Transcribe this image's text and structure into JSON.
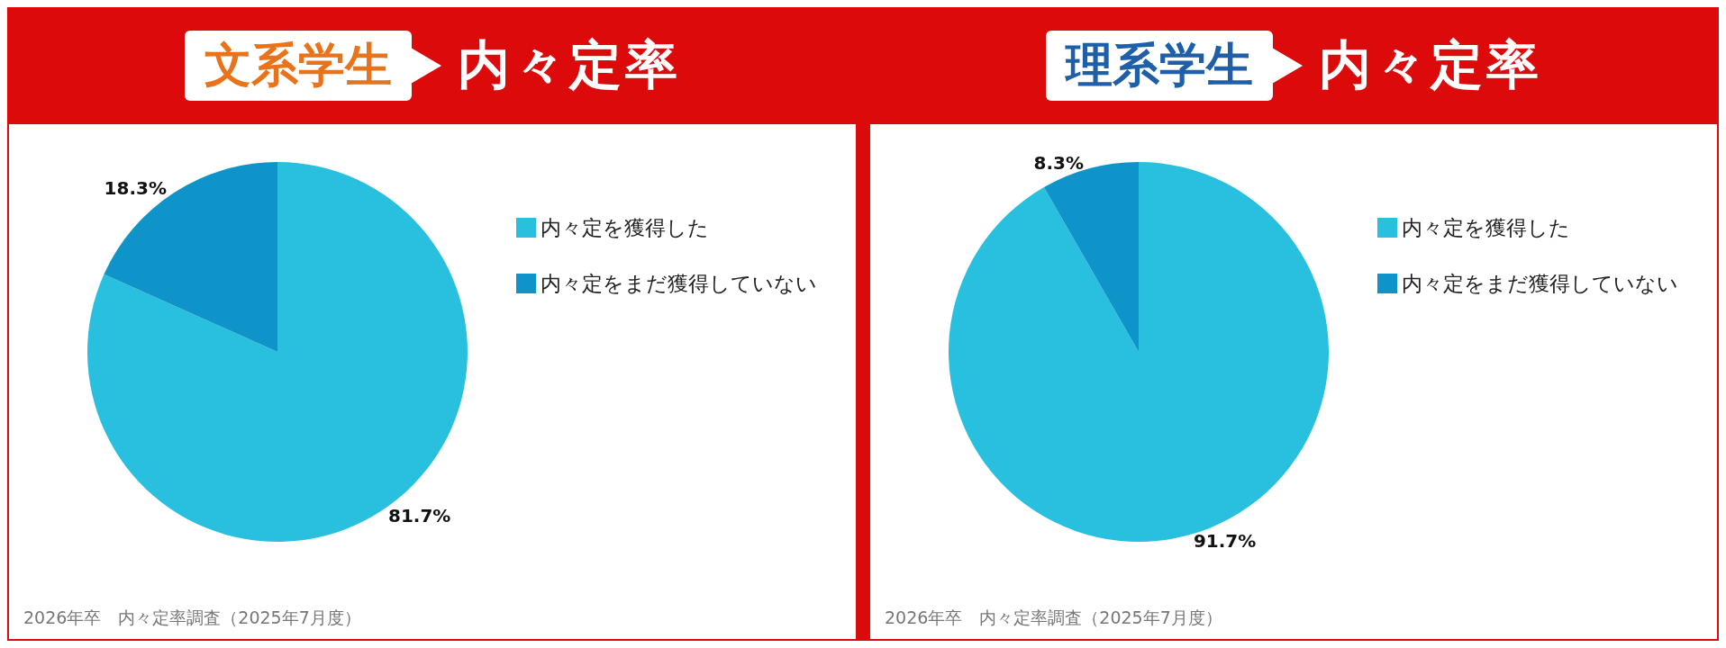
{
  "chart_data": [
    {
      "type": "pie",
      "title": "文系学生",
      "subtitle": "内々定率",
      "categories": [
        "内々定を獲得した",
        "内々定をまだ獲得していない"
      ],
      "values": [
        81.7,
        18.3
      ],
      "colors": [
        "#29c0e0",
        "#0e94c8"
      ],
      "value_labels": [
        "81.7%",
        "18.3%"
      ],
      "legend": "right",
      "annotations": [
        "2026年卒　内々定率調査（2025年7月度）"
      ]
    },
    {
      "type": "pie",
      "title": "理系学生",
      "subtitle": "内々定率",
      "categories": [
        "内々定を獲得した",
        "内々定をまだ獲得していない"
      ],
      "values": [
        91.7,
        8.3
      ],
      "colors": [
        "#29c0e0",
        "#0e94c8"
      ],
      "value_labels": [
        "91.7%",
        "8.3%"
      ],
      "legend": "right",
      "annotations": [
        "2026年卒　内々定率調査（2025年7月度）"
      ]
    }
  ]
}
